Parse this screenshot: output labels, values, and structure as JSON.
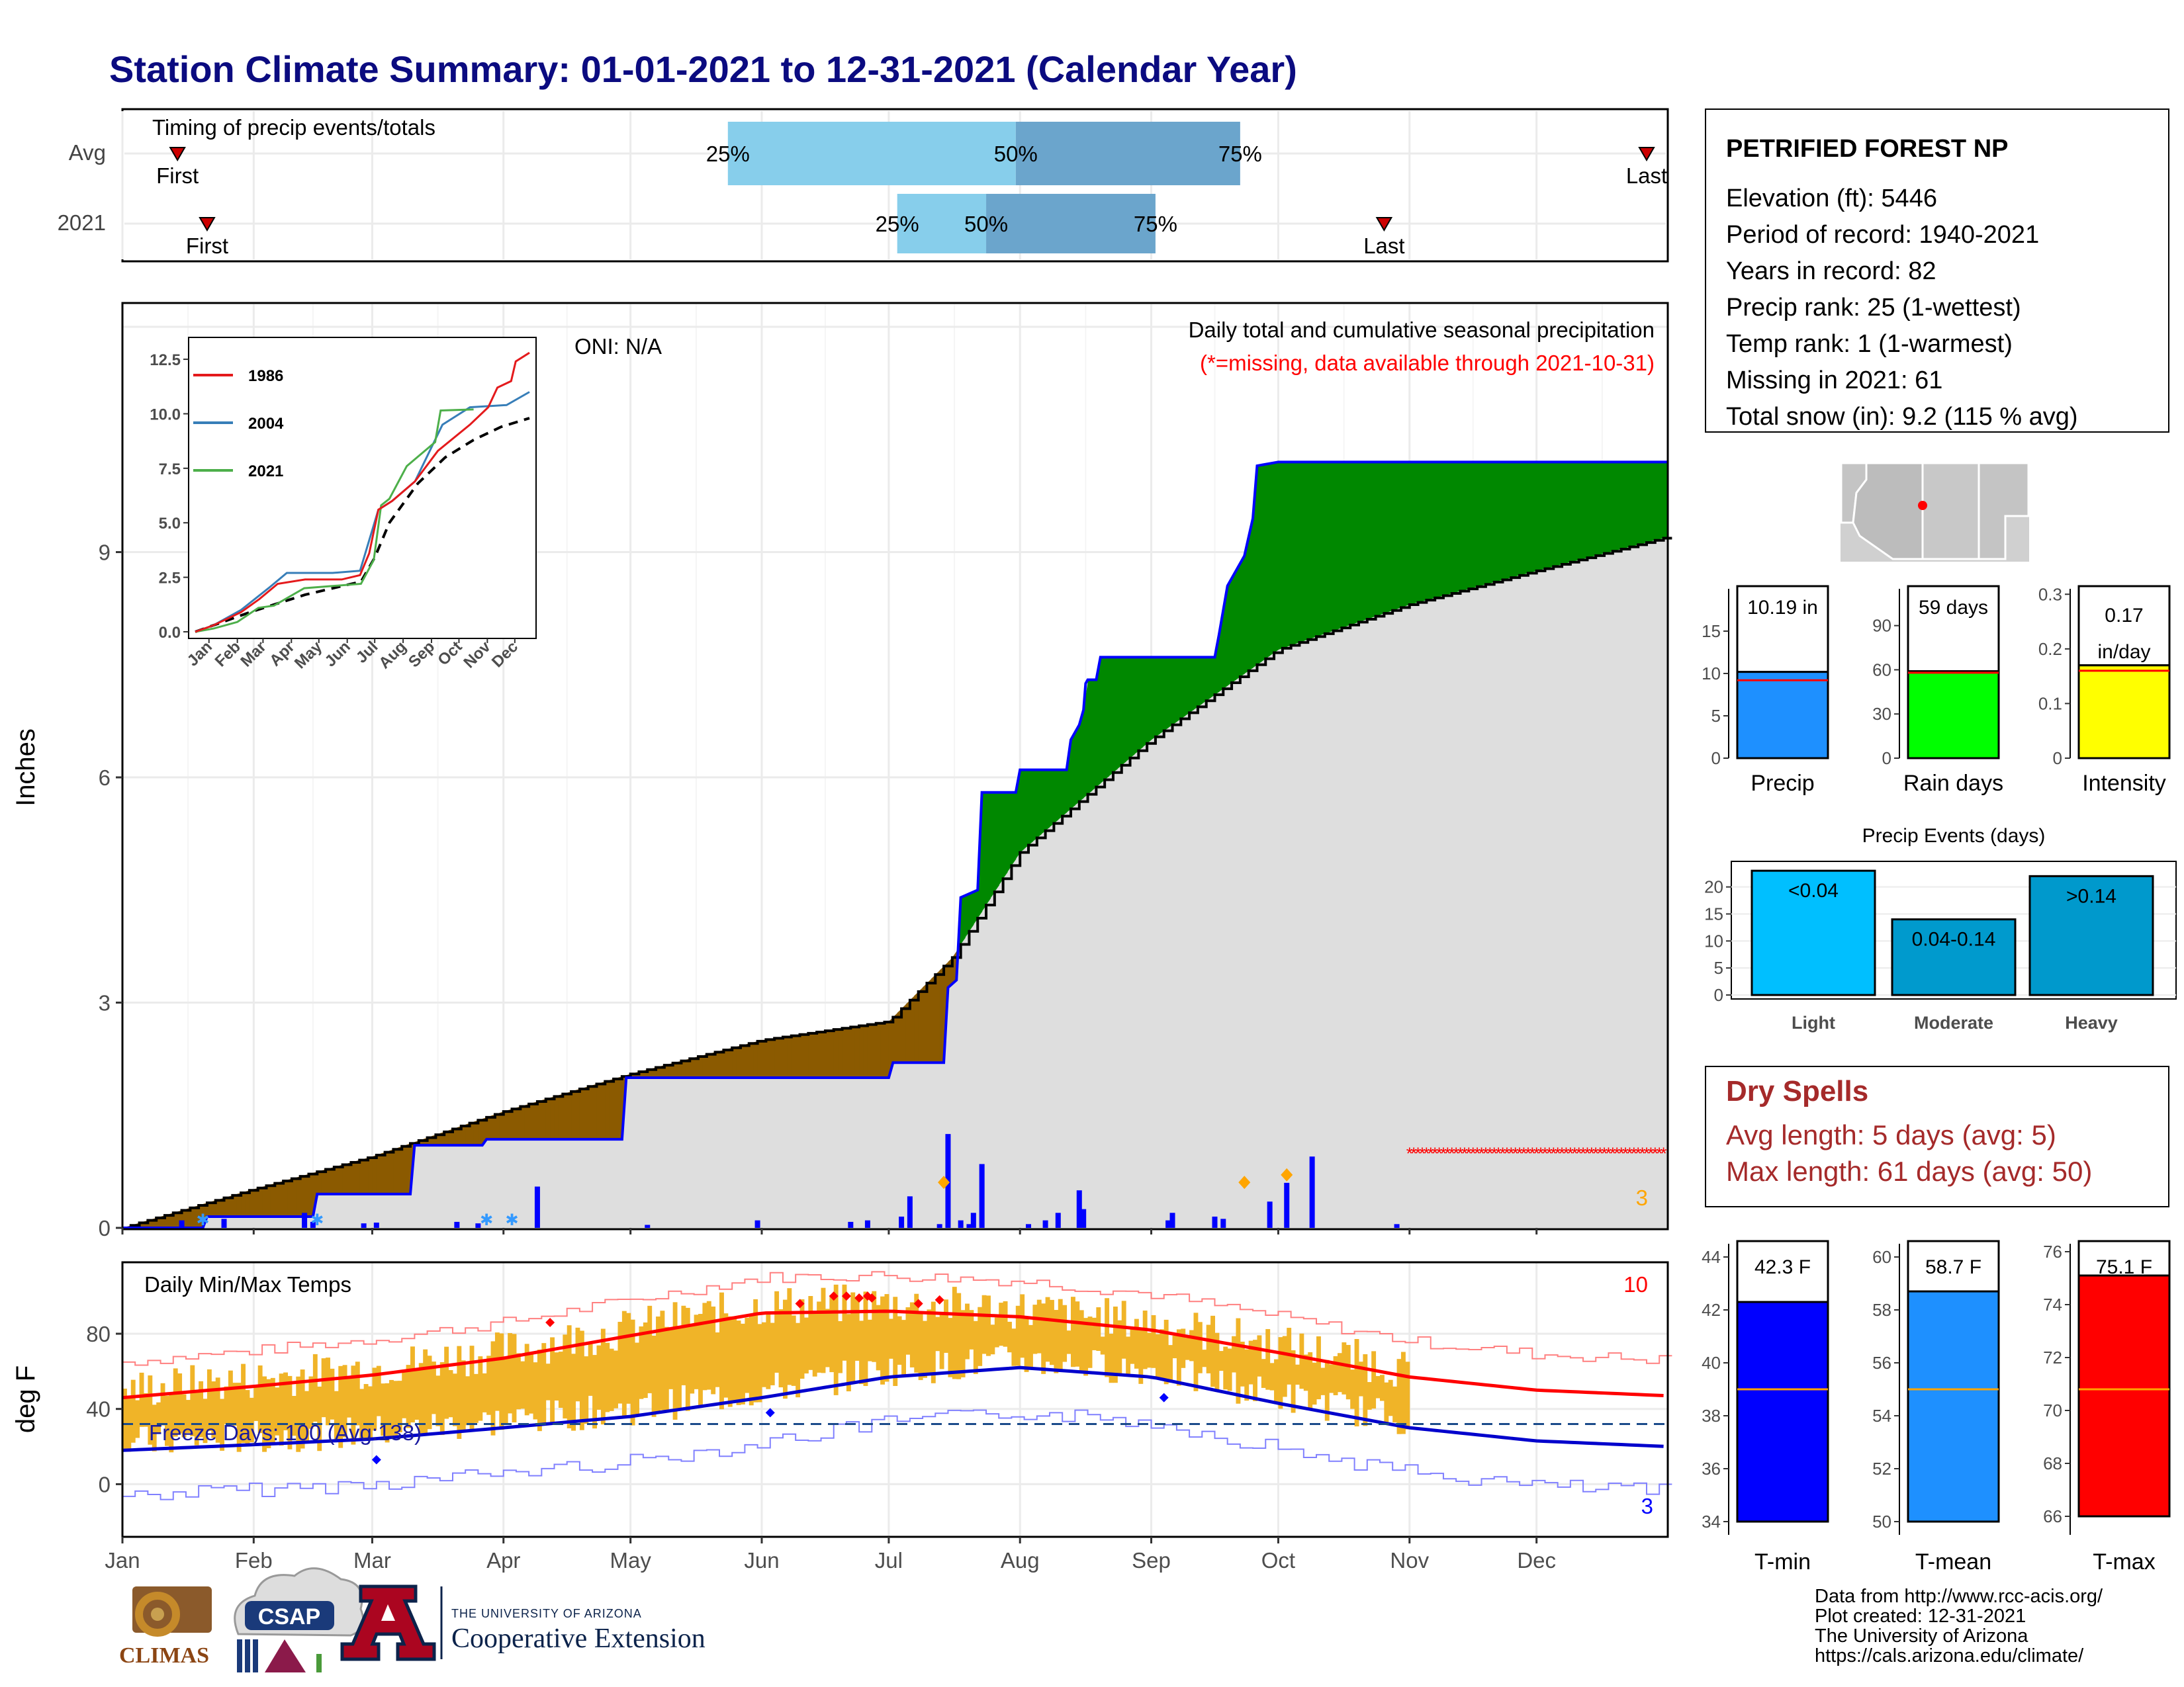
{
  "title": "Station Climate Summary: 01-01-2021 to 12-31-2021 (Calendar Year)",
  "colors": {
    "title": "#0b0b80",
    "light_blue": "#87ceeb",
    "mid_blue": "#6ba5cc",
    "green": "#008800",
    "brown": "#8b5a00",
    "gray_fill": "#dedede",
    "blue": "#0000ff",
    "red": "#ff0000",
    "orange": "#ffa500",
    "gold": "#f0b428",
    "dry_red": "#a52a2a"
  },
  "timing_panel": {
    "label": "Timing of precip events/totals",
    "rows": [
      {
        "name": "Avg",
        "first_label": "First",
        "last_label": "Last",
        "first_doy": 13,
        "last_doy": 360,
        "p25": 143,
        "p50": 211,
        "p75": 264,
        "p25_label": "25%",
        "p50_label": "50%",
        "p75_label": "75%"
      },
      {
        "name": "2021",
        "first_label": "First",
        "last_label": "Last",
        "first_doy": 20,
        "last_doy": 298,
        "p25": 183,
        "p50": 204,
        "p75": 244,
        "p25_label": "25%",
        "p50_label": "50%",
        "p75_label": "75%"
      }
    ]
  },
  "precip_panel": {
    "ylabel": "Inches",
    "oni": "ONI: N/A",
    "subtitle": "Daily total and cumulative seasonal precipitation",
    "missing_note": "(*=missing, data available through 2021-10-31)",
    "corner_count": "3",
    "yticks": [
      "0",
      "3",
      "6",
      "9"
    ]
  },
  "inset": {
    "yticks": [
      "0.0",
      "2.5",
      "5.0",
      "7.5",
      "10.0",
      "12.5"
    ],
    "xticks": [
      "Jan",
      "Feb",
      "Mar",
      "Apr",
      "May",
      "Jun",
      "Jul",
      "Aug",
      "Sep",
      "Oct",
      "Nov",
      "Dec"
    ],
    "legend": [
      {
        "name": "1986",
        "color": "#e41a1c"
      },
      {
        "name": "2004",
        "color": "#377eb8"
      },
      {
        "name": "2021",
        "color": "#4daf4a"
      }
    ]
  },
  "temp_panel": {
    "ylabel": "deg F",
    "label": "Daily Min/Max Temps",
    "freeze_label": "Freeze Days: 100 (Avg:138)",
    "count_red": "10",
    "count_blue": "3",
    "yticks": [
      "0",
      "40",
      "80"
    ]
  },
  "months": [
    "Jan",
    "Feb",
    "Mar",
    "Apr",
    "May",
    "Jun",
    "Jul",
    "Aug",
    "Sep",
    "Oct",
    "Nov",
    "Dec"
  ],
  "station": {
    "name": "PETRIFIED FOREST NP",
    "lines": [
      "Elevation (ft): 5446",
      "Period of record: 1940-2021",
      "Years in record: 82",
      "Precip rank: 25 (1-wettest)",
      "Temp rank: 1 (1-warmest)",
      "Missing in 2021: 61",
      "Total snow (in): 9.2 (115 % avg)"
    ]
  },
  "dry_spells": {
    "title": "Dry Spells",
    "avg": "Avg length: 5 days (avg: 5)",
    "max": "Max length: 61 days (avg: 50)"
  },
  "events_title": "Precip Events (days)",
  "footer": {
    "lines": [
      "Data from http://www.rcc-acis.org/",
      "Plot created: 12-31-2021",
      "The University of Arizona",
      "https://cals.arizona.edu/climate/"
    ]
  },
  "logos": {
    "climas": "CLIMAS",
    "csap": "CSAP",
    "ua_small": "THE UNIVERSITY OF ARIZONA",
    "ua_big": "Cooperative Extension"
  },
  "chart_data": [
    {
      "type": "bar",
      "title": "Precip",
      "categories": [
        "Precip"
      ],
      "values": [
        10.19
      ],
      "avg": 9.2,
      "ylim": [
        0,
        20
      ],
      "yticks": [
        0,
        5,
        10,
        15
      ],
      "value_label": "10.19 in",
      "color": "#1e90ff"
    },
    {
      "type": "bar",
      "title": "Rain days",
      "categories": [
        "Rain days"
      ],
      "values": [
        59
      ],
      "avg": 58,
      "ylim": [
        0,
        115
      ],
      "yticks": [
        0,
        30,
        60,
        90
      ],
      "value_label": "59 days",
      "color": "#00ff00"
    },
    {
      "type": "bar",
      "title": "Intensity",
      "categories": [
        "Intensity"
      ],
      "values": [
        0.17
      ],
      "avg": 0.16,
      "ylim": [
        0,
        0.31
      ],
      "yticks": [
        0.0,
        0.1,
        0.2,
        0.3
      ],
      "value_label_1": "0.17",
      "value_label_2": "in/day",
      "color": "#ffff00"
    },
    {
      "type": "bar",
      "title": "Precip Events (days)",
      "categories": [
        "Light",
        "Moderate",
        "Heavy"
      ],
      "values": [
        23,
        14,
        22
      ],
      "labels": [
        "<0.04",
        "0.04-0.14",
        ">0.14"
      ],
      "colors": [
        "#00bfff",
        "#009acd",
        "#0099cc"
      ],
      "ylim": [
        0,
        24
      ],
      "yticks": [
        0,
        5,
        10,
        15,
        20
      ]
    },
    {
      "type": "bar",
      "title": "T-min",
      "categories": [
        "T-min"
      ],
      "values": [
        42.3
      ],
      "avg": 39.0,
      "ylim": [
        33.5,
        44.5
      ],
      "yticks": [
        34,
        36,
        38,
        40,
        42,
        44
      ],
      "value_label": "42.3 F",
      "color": "#0000ff"
    },
    {
      "type": "bar",
      "title": "T-mean",
      "categories": [
        "T-mean"
      ],
      "values": [
        58.7
      ],
      "avg": 55.0,
      "ylim": [
        49.5,
        60.5
      ],
      "yticks": [
        50,
        52,
        54,
        56,
        58,
        60
      ],
      "value_label": "58.7 F",
      "color": "#1e90ff"
    },
    {
      "type": "bar",
      "title": "T-max",
      "categories": [
        "T-max"
      ],
      "values": [
        75.1
      ],
      "avg": 70.8,
      "ylim": [
        65.3,
        76.3
      ],
      "yticks": [
        66,
        68,
        70,
        72,
        74,
        76
      ],
      "value_label": "75.1 F",
      "color": "#ff0000"
    },
    {
      "type": "area",
      "title": "Daily total and cumulative seasonal precipitation",
      "ylabel": "Inches",
      "ylim": [
        0,
        12.3
      ],
      "avg_cumulative": {
        "doy": [
          0,
          30,
          59,
          90,
          120,
          151,
          181,
          196,
          212,
          243,
          273,
          304,
          334,
          365
        ],
        "values": [
          0,
          0.5,
          0.95,
          1.55,
          2.05,
          2.5,
          2.75,
          3.6,
          5.0,
          6.5,
          7.7,
          8.3,
          8.75,
          9.2
        ]
      },
      "cumulative_2021": {
        "doy": [
          0,
          19,
          20,
          45,
          46,
          68,
          69,
          85,
          86,
          118,
          119,
          181,
          182,
          194,
          195,
          197,
          198,
          202,
          203,
          211,
          212,
          223,
          224,
          226,
          227,
          227.5,
          228,
          230,
          231,
          258,
          259,
          261,
          262,
          265,
          266,
          267,
          268,
          273,
          274,
          365
        ],
        "values": [
          0,
          0,
          0.15,
          0.15,
          0.45,
          0.45,
          1.1,
          1.1,
          1.18,
          1.18,
          2.0,
          2.0,
          2.2,
          2.2,
          3.2,
          3.3,
          4.4,
          4.5,
          5.8,
          5.8,
          6.1,
          6.1,
          6.5,
          6.7,
          6.9,
          7.25,
          7.3,
          7.3,
          7.6,
          7.6,
          7.9,
          8.55,
          8.65,
          8.95,
          9.2,
          9.45,
          10.15,
          10.2,
          10.2,
          10.2
        ]
      },
      "daily_bars": {
        "doy": [
          14,
          24,
          43,
          45,
          57,
          60,
          79,
          84,
          98,
          124,
          150,
          172,
          176,
          184,
          186,
          193,
          195,
          198,
          200,
          201,
          203,
          214,
          218,
          221,
          226,
          227,
          247,
          248,
          258,
          260,
          271,
          275,
          281,
          301
        ],
        "values": [
          0.1,
          0.12,
          0.2,
          0.08,
          0.06,
          0.07,
          0.08,
          0.06,
          0.55,
          0.04,
          0.1,
          0.08,
          0.1,
          0.15,
          0.42,
          0.05,
          1.25,
          0.1,
          0.05,
          0.2,
          0.85,
          0.05,
          0.1,
          0.2,
          0.5,
          0.25,
          0.1,
          0.2,
          0.15,
          0.12,
          0.35,
          0.6,
          0.95,
          0.05
        ]
      },
      "max_day_markers_doy": [
        194,
        265,
        275
      ]
    },
    {
      "type": "line",
      "title": "Daily Min/Max Temps",
      "ylabel": "deg F",
      "ylim": [
        -28,
        118
      ],
      "avg_max": {
        "doy": [
          0,
          31,
          59,
          90,
          120,
          151,
          181,
          212,
          243,
          273,
          304,
          334,
          365
        ],
        "values": [
          46,
          52,
          58,
          67,
          79,
          91,
          92,
          89,
          82,
          70,
          57,
          50,
          47
        ]
      },
      "avg_min": {
        "doy": [
          0,
          31,
          59,
          90,
          120,
          151,
          181,
          212,
          243,
          273,
          304,
          334,
          365
        ],
        "values": [
          18,
          21,
          24,
          30,
          36,
          46,
          57,
          62,
          57,
          43,
          30,
          23,
          20
        ]
      },
      "freeze_line": 32
    }
  ]
}
